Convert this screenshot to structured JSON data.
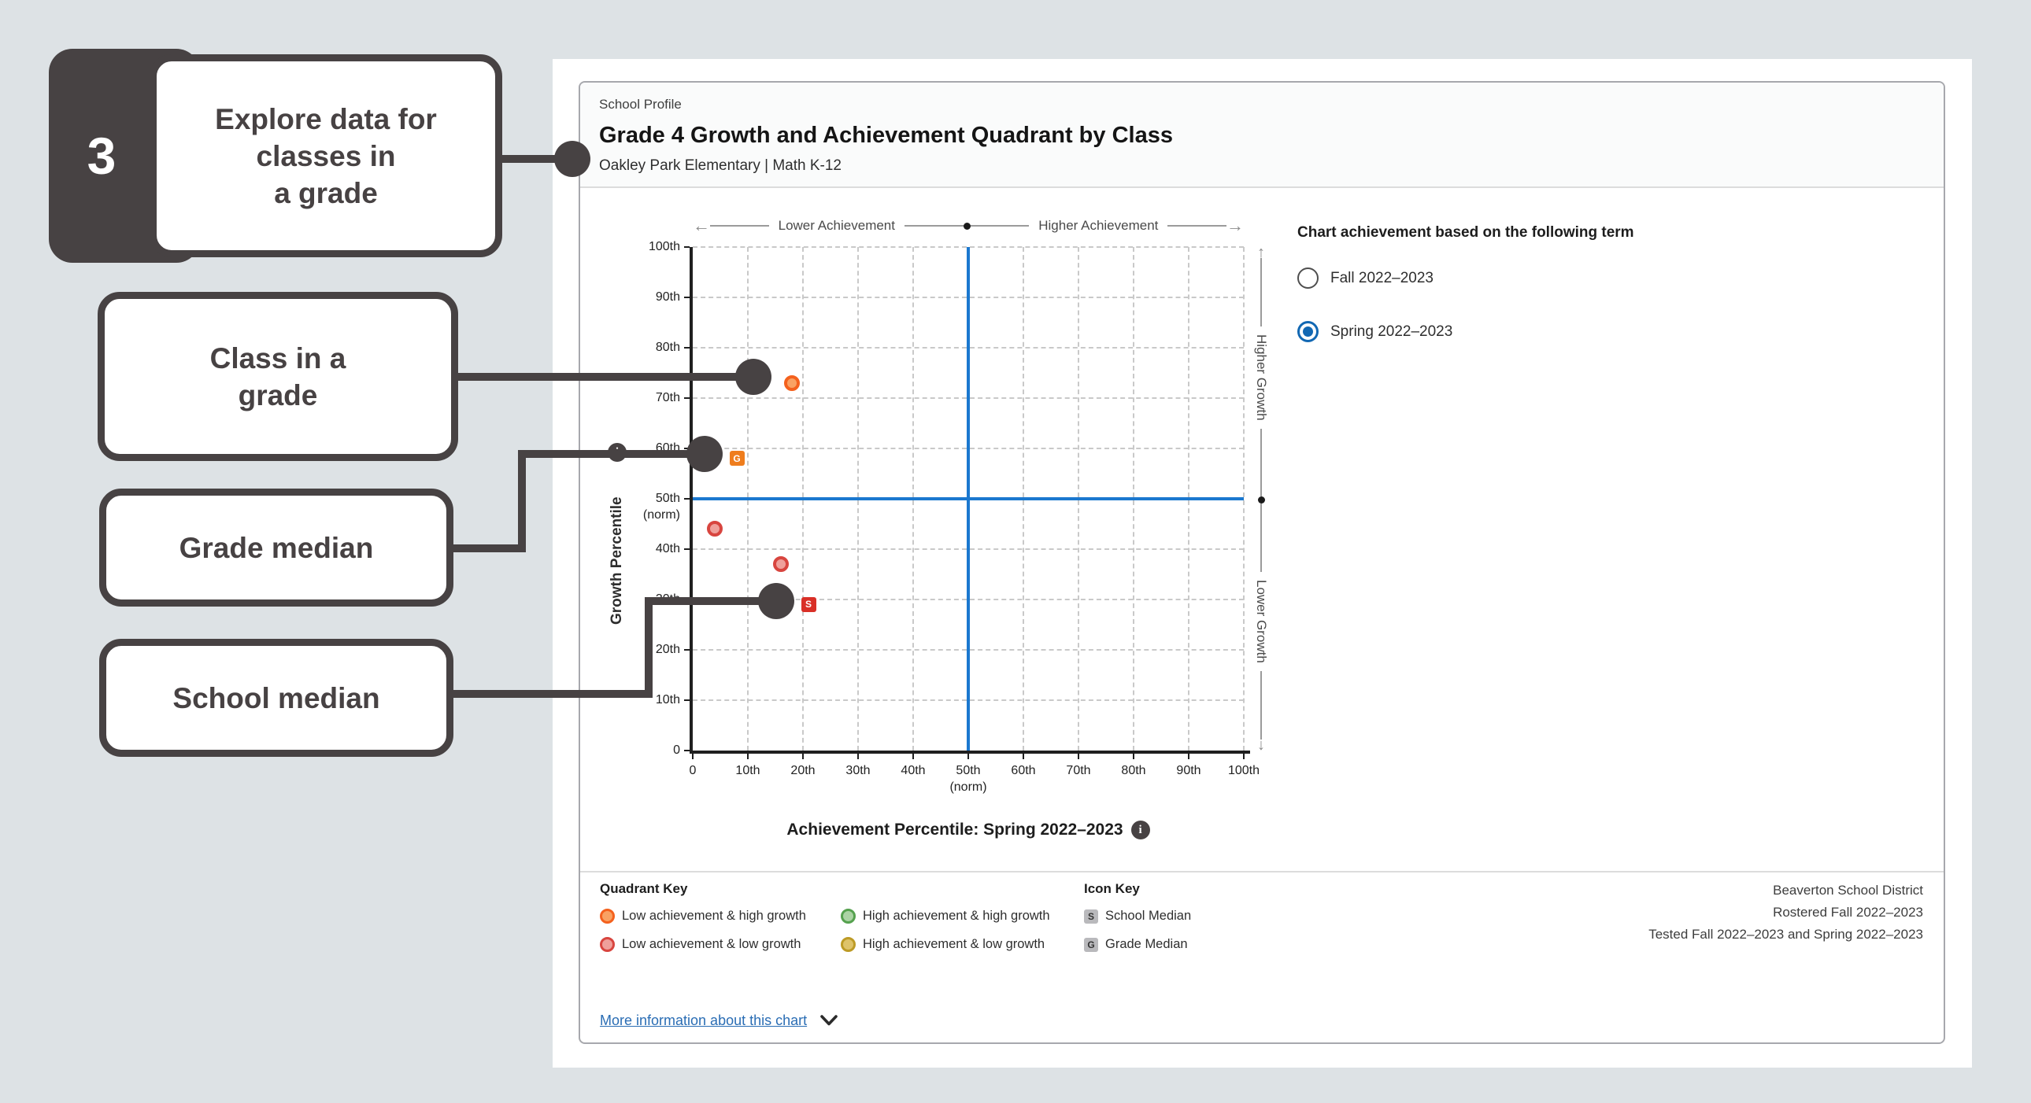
{
  "callouts": {
    "step": {
      "number": "3",
      "lines": [
        "Explore data for",
        "classes in",
        "a grade"
      ]
    },
    "class_label": {
      "lines": [
        "Class in a",
        "grade"
      ]
    },
    "grade_label": {
      "lines": [
        "Grade median"
      ]
    },
    "school_label": {
      "lines": [
        "School median"
      ]
    }
  },
  "header": {
    "eyebrow": "School Profile",
    "title": "Grade 4 Growth and Achievement Quadrant by Class",
    "subtitle": "Oakley Park Elementary | Math K-12"
  },
  "term_selector": {
    "title": "Chart achievement based on the following term",
    "options": [
      {
        "label": "Fall 2022–2023",
        "selected": false
      },
      {
        "label": "Spring 2022–2023",
        "selected": true
      }
    ]
  },
  "chart_data": {
    "type": "scatter",
    "title": "Grade 4 Growth and Achievement Quadrant by Class",
    "x_axis": {
      "title": "Achievement Percentile: Spring 2022–2023",
      "range": [
        0,
        100
      ],
      "ticks": [
        {
          "v": 0,
          "label": "0"
        },
        {
          "v": 10,
          "label": "10th"
        },
        {
          "v": 20,
          "label": "20th"
        },
        {
          "v": 30,
          "label": "30th"
        },
        {
          "v": 40,
          "label": "40th"
        },
        {
          "v": 50,
          "label": "50th",
          "sub": "(norm)"
        },
        {
          "v": 60,
          "label": "60th"
        },
        {
          "v": 70,
          "label": "70th"
        },
        {
          "v": 80,
          "label": "80th"
        },
        {
          "v": 90,
          "label": "90th"
        },
        {
          "v": 100,
          "label": "100th"
        }
      ]
    },
    "y_axis": {
      "title": "Growth Percentile",
      "range": [
        0,
        100
      ],
      "ticks": [
        {
          "v": 0,
          "label": "0"
        },
        {
          "v": 10,
          "label": "10th"
        },
        {
          "v": 20,
          "label": "20th"
        },
        {
          "v": 30,
          "label": "30th"
        },
        {
          "v": 40,
          "label": "40th"
        },
        {
          "v": 50,
          "label": "50th",
          "sub": "(norm)"
        },
        {
          "v": 60,
          "label": "60th"
        },
        {
          "v": 70,
          "label": "70th"
        },
        {
          "v": 80,
          "label": "80th"
        },
        {
          "v": 90,
          "label": "90th"
        },
        {
          "v": 100,
          "label": "100th"
        }
      ]
    },
    "reference_lines": {
      "x": 50,
      "y": 50,
      "color": "#1b78cf"
    },
    "grid": true,
    "annotations": {
      "top_left": "Lower Achievement",
      "top_right": "Higher Achievement",
      "right_top": "Higher Growth",
      "right_bottom": "Lower Growth"
    },
    "points": [
      {
        "id": "class-point",
        "kind": "class",
        "shape": "circle",
        "x": 18,
        "y": 73,
        "quadrant": "Low achievement & high growth",
        "stroke": "#f4611d",
        "fill": "#f9a263"
      },
      {
        "id": "class-point",
        "kind": "class",
        "shape": "circle",
        "x": 4,
        "y": 44,
        "quadrant": "Low achievement & low growth",
        "stroke": "#d8453f",
        "fill": "#efa09b"
      },
      {
        "id": "class-point",
        "kind": "class",
        "shape": "circle",
        "x": 16,
        "y": 37,
        "quadrant": "Low achievement & low growth",
        "stroke": "#d8453f",
        "fill": "#efa09b"
      },
      {
        "id": "grade-median",
        "kind": "median",
        "shape": "square",
        "letter": "G",
        "label": "Grade Median",
        "x": 8,
        "y": 58,
        "fill": "#ef7d1d"
      },
      {
        "id": "school-median",
        "kind": "median",
        "shape": "square",
        "letter": "S",
        "label": "School Median",
        "x": 21,
        "y": 29,
        "fill": "#d92f27"
      }
    ]
  },
  "legend": {
    "quadrant_key": {
      "title": "Quadrant Key",
      "items": [
        {
          "label": "Low achievement & high growth",
          "stroke": "#f4611d",
          "fill": "#f9a263"
        },
        {
          "label": "High achievement & high growth",
          "stroke": "#55a14e",
          "fill": "#abd3a4"
        },
        {
          "label": "Low achievement & low growth",
          "stroke": "#d8453f",
          "fill": "#efa09b"
        },
        {
          "label": "High achievement & low growth",
          "stroke": "#bd9b26",
          "fill": "#dec36a"
        }
      ]
    },
    "icon_key": {
      "title": "Icon Key",
      "items": [
        {
          "letter": "S",
          "label": "School Median"
        },
        {
          "letter": "G",
          "label": "Grade Median"
        }
      ]
    }
  },
  "source": {
    "lines": [
      "Beaverton School District",
      "Rostered Fall 2022–2023",
      "Tested Fall 2022–2023 and Spring 2022–2023"
    ]
  },
  "footer": {
    "more_info": "More information about this chart"
  }
}
